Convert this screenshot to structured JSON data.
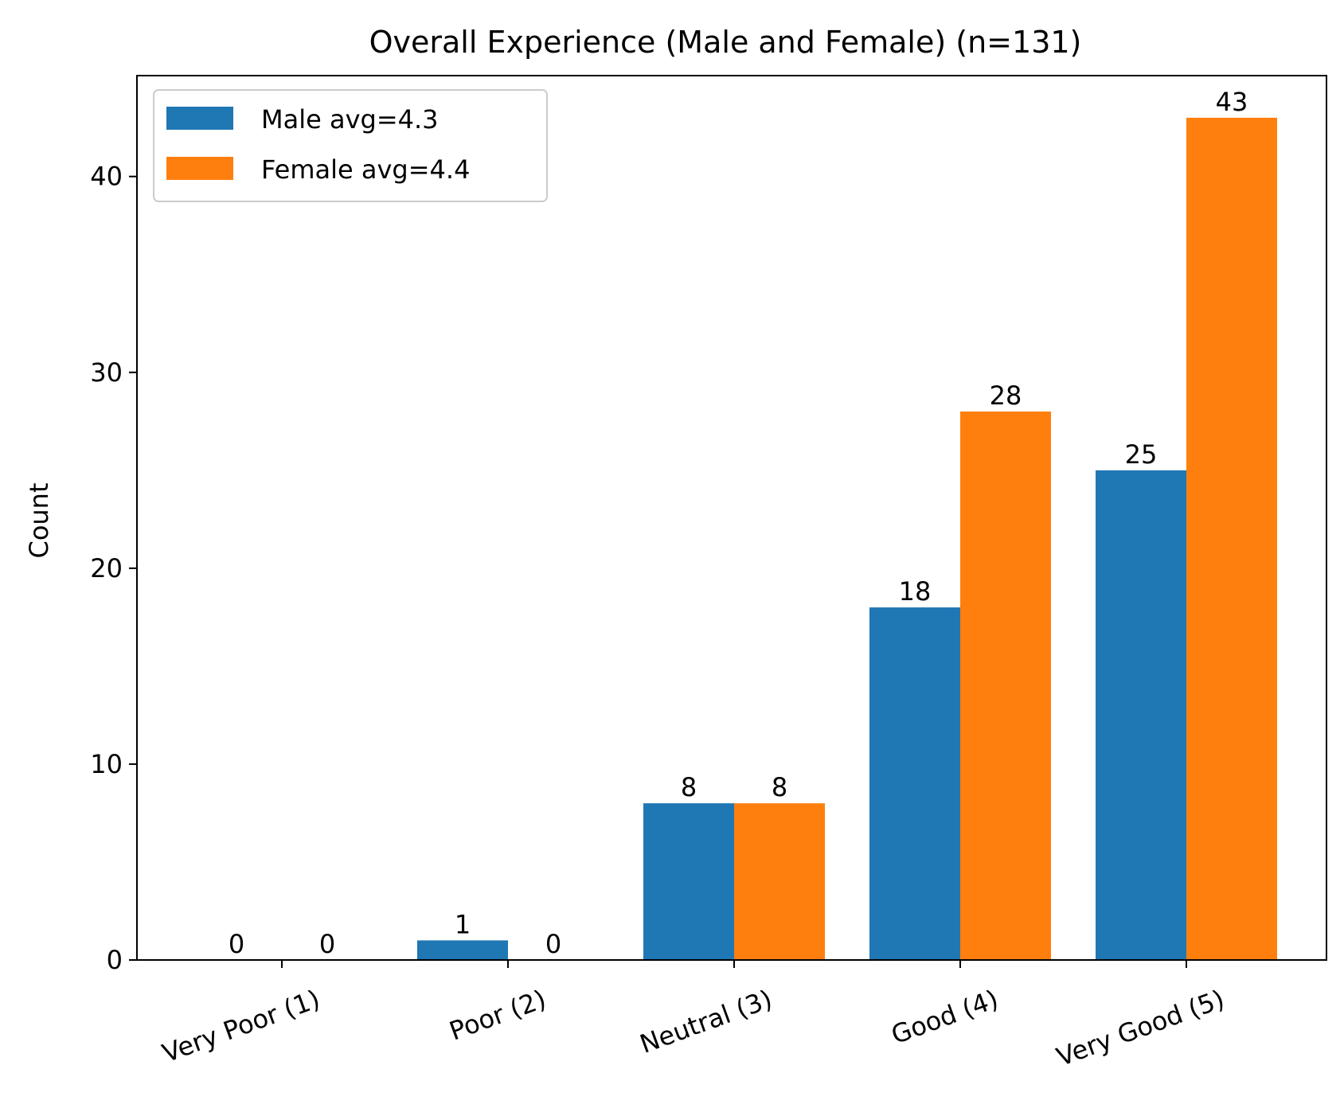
{
  "chart_data": {
    "type": "bar",
    "title": "Overall Experience (Male and Female) (n=131)",
    "xlabel": "",
    "ylabel": "Count",
    "categories": [
      "Very Poor (1)",
      "Poor (2)",
      "Neutral (3)",
      "Good (4)",
      "Very Good (5)"
    ],
    "series": [
      {
        "name": "Male avg=4.3",
        "values": [
          0,
          1,
          8,
          18,
          25
        ],
        "color": "#1f77b4"
      },
      {
        "name": "Female avg=4.4",
        "values": [
          0,
          0,
          8,
          28,
          43
        ],
        "color": "#ff7f0e"
      }
    ],
    "ylim": [
      0,
      45.15
    ],
    "yticks": [
      0,
      10,
      20,
      30,
      40
    ],
    "grid": false,
    "legend_position": "top-left"
  }
}
